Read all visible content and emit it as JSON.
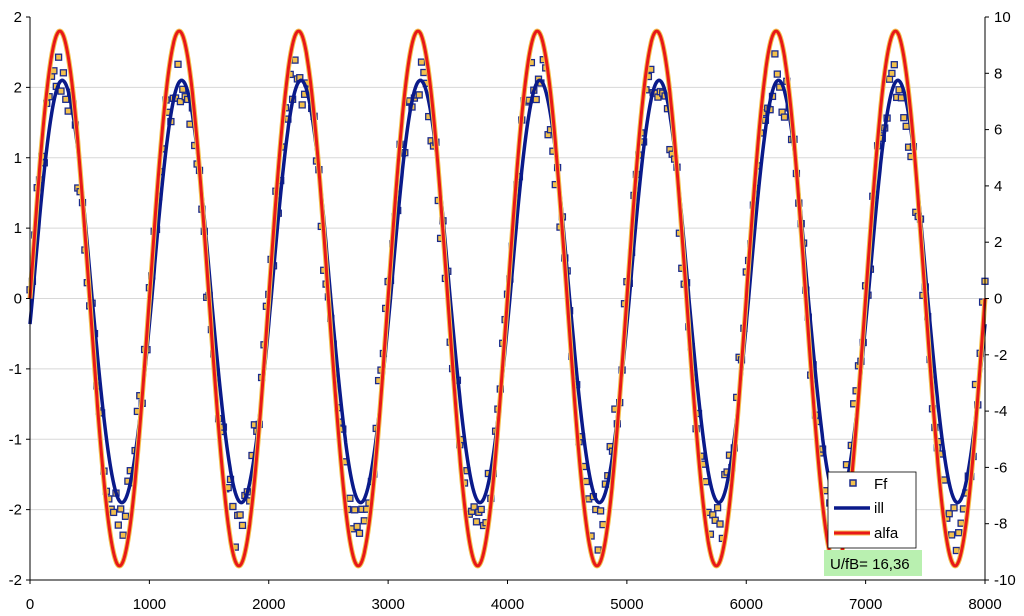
{
  "chart_data": {
    "type": "line",
    "title": "",
    "xlabel": "",
    "ylabel": "",
    "xlim": [
      0,
      8000
    ],
    "ylim_left": [
      -2,
      2
    ],
    "ylim_right": [
      -10,
      10
    ],
    "x_ticks": [
      "0",
      "1000",
      "2000",
      "3000",
      "4000",
      "5000",
      "6000",
      "7000",
      "8000"
    ],
    "left_ticks": [
      {
        "value": 2.0,
        "label": "2"
      },
      {
        "value": 1.5,
        "label": "2"
      },
      {
        "value": 1.0,
        "label": "1"
      },
      {
        "value": 0.5,
        "label": "1"
      },
      {
        "value": 0.0,
        "label": "0"
      },
      {
        "value": -0.5,
        "label": "-1"
      },
      {
        "value": -1.0,
        "label": "-1"
      },
      {
        "value": -1.5,
        "label": "-2"
      },
      {
        "value": -2.0,
        "label": "-2"
      }
    ],
    "right_ticks": [
      "10",
      "8",
      "6",
      "4",
      "2",
      "0",
      "-2",
      "-4",
      "-6",
      "-8",
      "-10"
    ],
    "grid": "horizontal",
    "series": [
      {
        "name": "Ff",
        "kind": "scatter",
        "axis": "left",
        "color": "#1a2a8c",
        "fill": "#f2c14e",
        "amplitude": 1.6,
        "period": 1000,
        "phase_x": 250,
        "noise": 0.2,
        "sample_step": 20
      },
      {
        "name": "ill",
        "kind": "line",
        "axis": "left",
        "color": "#0a1a8a",
        "amplitude_top": 1.55,
        "amplitude_bottom": 1.45,
        "period": 1000,
        "phase_x": 270
      },
      {
        "name": "alfa",
        "kind": "line",
        "axis": "left",
        "color": "#e81818",
        "outline": "#f2c14e",
        "amplitude": 1.9,
        "period": 1000,
        "phase_x": 250
      }
    ],
    "legend": {
      "position": "bottom-right",
      "entries": [
        "Ff",
        "ill",
        "alfa"
      ]
    },
    "annotation": {
      "text": "U/fB= 16,36",
      "background": "#b9f0b0",
      "position": "bottom-right"
    }
  }
}
